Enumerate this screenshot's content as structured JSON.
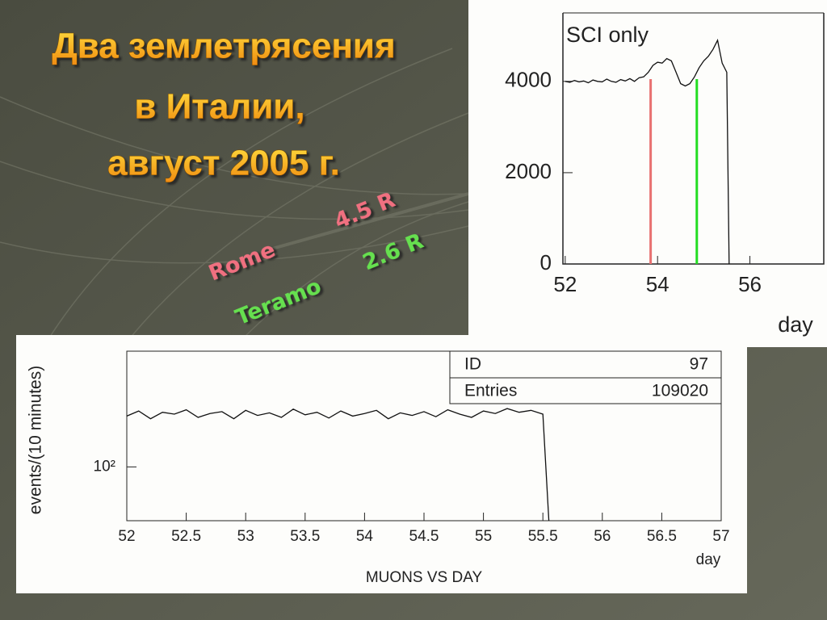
{
  "slide": {
    "title_lines": [
      "Два землетрясения",
      "в Италии,",
      "август 2005 г."
    ],
    "labels": [
      {
        "text": "Rome",
        "color": "#f07080"
      },
      {
        "text": "4.5 R",
        "color": "#f07080"
      },
      {
        "text": "Teramo",
        "color": "#66e050"
      },
      {
        "text": "2.6 R",
        "color": "#66e050"
      }
    ]
  },
  "chart_data": [
    {
      "type": "line",
      "annotation": "SCI only",
      "x_label": "day",
      "x": [
        52.0,
        52.1,
        52.2,
        52.3,
        52.4,
        52.5,
        52.6,
        52.7,
        52.8,
        52.9,
        53.0,
        53.1,
        53.2,
        53.3,
        53.4,
        53.5,
        53.6,
        53.7,
        53.8,
        53.9,
        54.0,
        54.1,
        54.2,
        54.3,
        54.4,
        54.5,
        54.6,
        54.7,
        54.8,
        54.9,
        55.0,
        55.1,
        55.2,
        55.3,
        55.4,
        55.5,
        55.55
      ],
      "series": [
        {
          "color": "#111111",
          "values": [
            4000,
            3980,
            4020,
            3990,
            4010,
            3970,
            4030,
            4000,
            3990,
            4050,
            4000,
            3980,
            4040,
            4010,
            4060,
            4000,
            4080,
            4100,
            4200,
            4350,
            4420,
            4400,
            4500,
            4450,
            4200,
            3950,
            3900,
            3950,
            4100,
            4300,
            4450,
            4550,
            4700,
            4900,
            4400,
            4200,
            0
          ]
        }
      ],
      "vlines": [
        {
          "x": 53.85,
          "color": "#e87070"
        },
        {
          "x": 54.85,
          "color": "#22dd22"
        }
      ],
      "xlim": [
        51.95,
        57.6
      ],
      "xticks": [
        52,
        54,
        56
      ],
      "ylim": [
        0,
        5500
      ],
      "yticks": [
        0,
        2000,
        4000
      ]
    },
    {
      "type": "line",
      "title": "MUONS VS DAY",
      "x_label": "day",
      "y_label": "events/(10 minutes)",
      "stats": [
        [
          "ID",
          "97"
        ],
        [
          "Entries",
          "109020"
        ]
      ],
      "x": [
        52.0,
        52.1,
        52.2,
        52.3,
        52.4,
        52.5,
        52.6,
        52.7,
        52.8,
        52.9,
        53.0,
        53.1,
        53.2,
        53.3,
        53.4,
        53.5,
        53.6,
        53.7,
        53.8,
        53.9,
        54.0,
        54.1,
        54.2,
        54.3,
        54.4,
        54.5,
        54.6,
        54.7,
        54.8,
        54.9,
        55.0,
        55.1,
        55.2,
        55.3,
        55.4,
        55.5,
        55.55
      ],
      "series": [
        {
          "color": "#111111",
          "values": [
            162,
            170,
            158,
            168,
            165,
            172,
            160,
            166,
            169,
            158,
            171,
            163,
            167,
            160,
            173,
            164,
            168,
            159,
            170,
            162,
            166,
            171,
            158,
            167,
            163,
            169,
            161,
            172,
            165,
            160,
            170,
            166,
            174,
            168,
            171,
            165,
            60
          ]
        }
      ],
      "log_y": true,
      "xlim": [
        52,
        57
      ],
      "xticks": [
        52,
        52.5,
        53,
        53.5,
        54,
        54.5,
        55,
        55.5,
        56,
        56.5,
        57
      ],
      "ylim": [
        60,
        300
      ],
      "yticks": [
        {
          "value": 100,
          "label": "10²"
        }
      ]
    }
  ]
}
